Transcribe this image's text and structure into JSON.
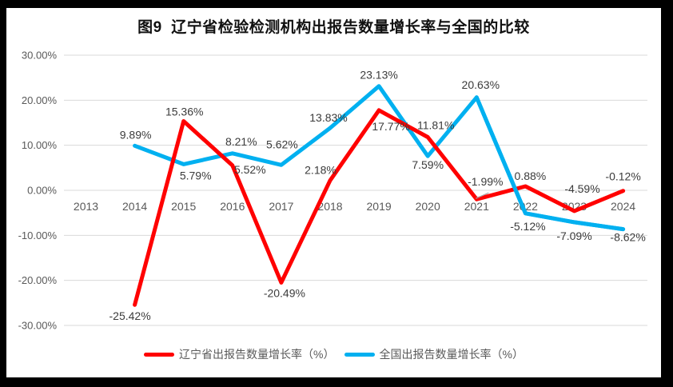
{
  "title": "图9  辽宁省检验检测机构出报告数量增长率与全国的比较",
  "chart_data": {
    "type": "line",
    "categories": [
      "2013",
      "2014",
      "2015",
      "2016",
      "2017",
      "2018",
      "2019",
      "2020",
      "2021",
      "2022",
      "2023",
      "2024"
    ],
    "series": [
      {
        "name": "辽宁省出报告数量增长率（%）",
        "color": "#FF0000",
        "values": [
          null,
          -25.42,
          15.36,
          5.52,
          -20.49,
          2.18,
          17.77,
          11.81,
          -1.99,
          0.88,
          -4.59,
          -0.12
        ],
        "labels": [
          null,
          "-25.42%",
          "15.36%",
          "5.52%",
          "-20.49%",
          "2.18%",
          "17.77%",
          "11.81%",
          "-1.99%",
          "0.88%",
          "-4.59%",
          "-0.12%"
        ],
        "label_placements": [
          null,
          "below",
          "above",
          "below",
          "below",
          "above",
          "below",
          "above",
          "above",
          "above",
          "above",
          "above"
        ]
      },
      {
        "name": "全国出报告数量增长率（%）",
        "color": "#00B0F0",
        "values": [
          null,
          9.89,
          5.79,
          8.21,
          5.62,
          13.83,
          23.13,
          7.59,
          20.63,
          -5.12,
          -7.09,
          -8.62
        ],
        "labels": [
          null,
          "9.89%",
          "5.79%",
          "8.21%",
          "5.62%",
          "13.83%",
          "23.13%",
          "7.59%",
          "20.63%",
          "-5.12%",
          "-7.09%",
          "-8.62%"
        ],
        "label_placements": [
          null,
          "above",
          "below",
          "above",
          "above",
          "above",
          "above",
          "below",
          "above",
          "below",
          "below",
          "below"
        ]
      }
    ],
    "y_ticks": [
      {
        "value": 30,
        "label": "30.00%"
      },
      {
        "value": 20,
        "label": "20.00%"
      },
      {
        "value": 10,
        "label": "10.00%"
      },
      {
        "value": 0,
        "label": "0.00%"
      },
      {
        "value": -10,
        "label": "-10.00%"
      },
      {
        "value": -20,
        "label": "-20.00%"
      },
      {
        "value": -30,
        "label": "-30.00%"
      }
    ],
    "ylim": [
      -30,
      30
    ],
    "xlabel": "",
    "ylabel": "",
    "grid": true,
    "legend_position": "bottom",
    "colors": {
      "grid_line": "#D9D9D9",
      "axis_text": "#595959",
      "data_label_text": "#3b3b3b",
      "leader_line": "#A6A6A6"
    }
  }
}
